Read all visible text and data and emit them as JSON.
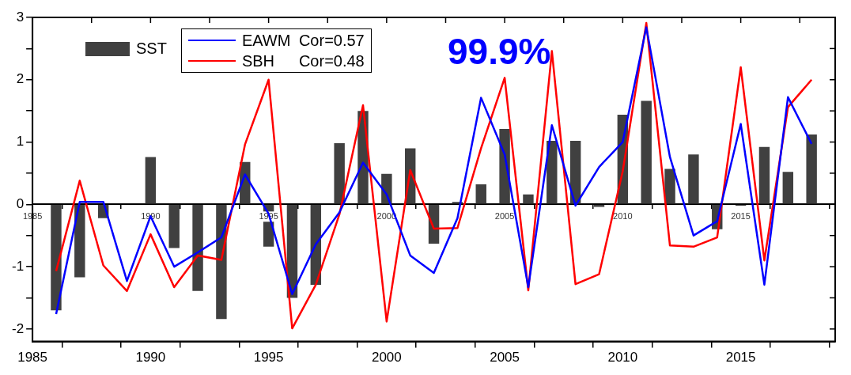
{
  "chart_data": {
    "type": "bar",
    "x": [
      1986,
      1987,
      1988,
      1989,
      1990,
      1991,
      1992,
      1993,
      1994,
      1995,
      1996,
      1997,
      1998,
      1999,
      2000,
      2001,
      2002,
      2003,
      2004,
      2005,
      2006,
      2007,
      2008,
      2009,
      2010,
      2011,
      2012,
      2013,
      2014,
      2015,
      2016,
      2017,
      2018
    ],
    "series": [
      {
        "name": "SST",
        "type": "bar",
        "color": "#404040",
        "values": [
          -1.7,
          -1.17,
          -0.22,
          0.01,
          0.76,
          -0.7,
          -1.39,
          -1.84,
          0.68,
          -0.68,
          -1.5,
          -1.29,
          0.98,
          1.5,
          0.49,
          0.9,
          -0.63,
          0.04,
          0.32,
          1.21,
          0.16,
          1.02,
          1.02,
          -0.04,
          1.44,
          1.66,
          0.57,
          0.8,
          -0.4,
          -0.02,
          0.92,
          0.52,
          1.12
        ]
      },
      {
        "name": "EAWM",
        "type": "line",
        "color": "#0000ff",
        "values": [
          -1.76,
          0.04,
          0.04,
          -1.23,
          -0.19,
          -1.0,
          -0.77,
          -0.53,
          0.48,
          -0.15,
          -1.44,
          -0.64,
          -0.13,
          0.67,
          0.16,
          -0.82,
          -1.1,
          -0.22,
          1.71,
          0.8,
          -1.33,
          1.27,
          -0.02,
          0.6,
          1.0,
          2.84,
          0.76,
          -0.5,
          -0.27,
          1.29,
          -1.29,
          1.72,
          0.97
        ]
      },
      {
        "name": "SBH",
        "type": "line",
        "color": "#ff0000",
        "values": [
          -1.07,
          0.38,
          -0.98,
          -1.39,
          -0.48,
          -1.33,
          -0.82,
          -0.89,
          0.96,
          2.0,
          -1.99,
          -1.29,
          -0.16,
          1.59,
          -1.88,
          0.55,
          -0.39,
          -0.38,
          0.9,
          2.03,
          -1.38,
          2.46,
          -1.28,
          -1.12,
          0.53,
          2.91,
          -0.66,
          -0.68,
          -0.53,
          2.2,
          -0.9,
          1.56,
          2.0
        ]
      }
    ],
    "xlim": [
      1985,
      2019
    ],
    "xticks": [
      1985,
      {
        "value": 1987.5,
        "label": null
      },
      1990,
      {
        "value": 1992.5,
        "label": null
      },
      1995,
      {
        "value": 1997.5,
        "label": null
      },
      2000,
      {
        "value": 2002.5,
        "label": null
      },
      2005,
      {
        "value": 2007.5,
        "label": null
      },
      2010,
      {
        "value": 2012.5,
        "label": null
      },
      2015,
      {
        "value": 2017.5,
        "label": null
      }
    ],
    "x2lim": [
      1985,
      2019
    ],
    "x2ticks": [
      1985,
      {
        "value": 1987.5,
        "label": null
      },
      1990,
      {
        "value": 1992.5,
        "label": null
      },
      1995,
      {
        "value": 1997.5,
        "label": null
      },
      2000,
      {
        "value": 2002.5,
        "label": null
      },
      2005,
      {
        "value": 2007.5,
        "label": null
      },
      2010,
      {
        "value": 2012.5,
        "label": null
      },
      2015,
      {
        "value": 2017.5,
        "label": null
      }
    ],
    "ylim": [
      -2.2,
      3
    ],
    "yticks": [
      -2,
      {
        "value": -1.5,
        "label": null
      },
      -1,
      {
        "value": -0.5,
        "label": null
      },
      0,
      {
        "value": 0.5,
        "label": null
      },
      1,
      {
        "value": 1.5,
        "label": null
      },
      2,
      {
        "value": 2.5,
        "label": null
      },
      3
    ],
    "annotations": [
      "Cor=0.57",
      "Cor=0.48",
      "99.9%"
    ],
    "legend": "top left",
    "grid": false,
    "line_style": "solid",
    "marker": "none"
  }
}
